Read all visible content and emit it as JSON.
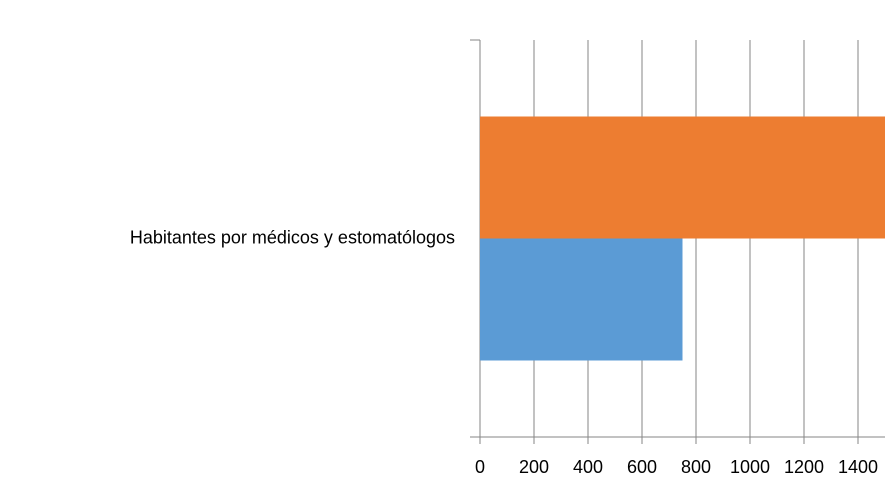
{
  "chart_data": {
    "type": "barh",
    "categories": [
      "Habitantes por médicos y estomatólogos"
    ],
    "series": [
      {
        "color": "#5b9bd5",
        "values": [
          750
        ]
      },
      {
        "color": "#ed7d31",
        "values": [
          1500
        ]
      }
    ],
    "xlim": [
      0,
      1500
    ],
    "xticks": [
      0,
      200,
      400,
      600,
      800,
      1000,
      1200,
      1400
    ],
    "grid": true
  }
}
